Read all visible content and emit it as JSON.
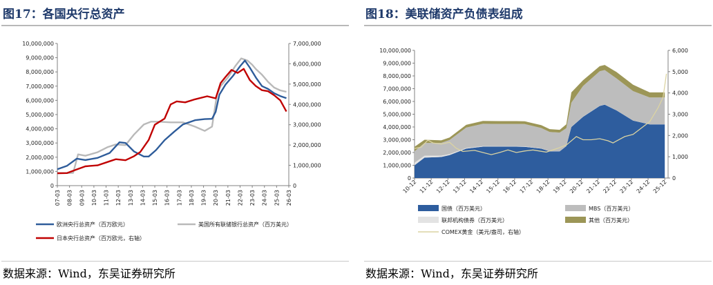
{
  "left_panel": {
    "title": "图17：各国央行总资产",
    "source": "数据来源：Wind，东吴证券研究所"
  },
  "right_panel": {
    "title": "图18：美联储资产负债表组成",
    "source": "数据来源：Wind，东吴证券研究所"
  },
  "colors": {
    "ecb": "#2e5c9a",
    "fed": "#b9b9b9",
    "boj": "#c00000",
    "treasury": "#2e5d9e",
    "mbs": "#bdbdbd",
    "agency": "#e3e3e3",
    "other": "#9c9657",
    "gold": "#dcd4a2",
    "title": "#1f3a6b"
  },
  "chart_data": [
    {
      "type": "line",
      "title": "",
      "x_categories": [
        "07-03",
        "08-03",
        "09-03",
        "10-03",
        "11-03",
        "12-03",
        "13-03",
        "14-03",
        "15-03",
        "16-03",
        "17-03",
        "18-03",
        "19-03",
        "20-03",
        "21-03",
        "22-03",
        "23-03",
        "24-03",
        "25-03",
        "26-03"
      ],
      "y_left_ticks": [
        "0",
        "1,000,000",
        "2,000,000",
        "3,000,000",
        "4,000,000",
        "5,000,000",
        "6,000,000",
        "7,000,000",
        "8,000,000",
        "9,000,000",
        "10,000,000"
      ],
      "y_left_range": [
        0,
        10000000
      ],
      "y_right_ticks": [
        "0",
        "1,000,000",
        "2,000,000",
        "3,000,000",
        "4,000,000",
        "5,000,000",
        "6,000,000",
        "7,000,000"
      ],
      "y_right_range": [
        0,
        7000000
      ],
      "series": [
        {
          "name": "欧洲央行总资产（百万欧元）",
          "axis": "left",
          "x": [
            2007.2,
            2008.0,
            2008.8,
            2009.5,
            2010.5,
            2011.5,
            2012.3,
            2012.8,
            2013.5,
            2014.3,
            2014.7,
            2015.3,
            2016.0,
            2016.8,
            2017.5,
            2018.5,
            2019.3,
            2019.9,
            2020.2,
            2020.5,
            2021.0,
            2021.6,
            2022.2,
            2022.6,
            2023.0,
            2023.5,
            2024.0,
            2024.5,
            2025.0,
            2025.5,
            2026.0
          ],
          "y": [
            1150000,
            1400000,
            1900000,
            1800000,
            1950000,
            2300000,
            3050000,
            3000000,
            2400000,
            2050000,
            2050000,
            2500000,
            3200000,
            3800000,
            4300000,
            4600000,
            4680000,
            4700000,
            5200000,
            6400000,
            7100000,
            7700000,
            8400000,
            8800000,
            8300000,
            7600000,
            7000000,
            6800000,
            6500000,
            6300000,
            6150000
          ]
        },
        {
          "name": "美国所有联储银行总资产（百万美元）",
          "axis": "left",
          "x": [
            2007.2,
            2008.5,
            2008.9,
            2009.5,
            2010.5,
            2011.3,
            2012.0,
            2012.8,
            2013.5,
            2014.3,
            2014.9,
            2015.5,
            2016.5,
            2017.5,
            2018.5,
            2019.3,
            2019.9,
            2020.3,
            2020.6,
            2021.2,
            2021.8,
            2022.3,
            2022.8,
            2023.2,
            2023.5,
            2024.0,
            2024.5,
            2025.0,
            2025.5,
            2026.0
          ],
          "y": [
            870000,
            900000,
            2200000,
            2100000,
            2350000,
            2700000,
            2900000,
            2850000,
            3600000,
            4300000,
            4500000,
            4500000,
            4450000,
            4450000,
            4150000,
            3850000,
            4150000,
            6400000,
            7000000,
            7600000,
            8400000,
            8950000,
            8800000,
            8500000,
            8200000,
            7800000,
            7300000,
            6900000,
            6700000,
            6600000
          ]
        },
        {
          "name": "日本央行总资产（百万欧元，右轴）",
          "axis": "right",
          "x": [
            2007.2,
            2008.0,
            2008.8,
            2009.5,
            2010.5,
            2011.5,
            2012.0,
            2012.8,
            2013.5,
            2014.0,
            2014.7,
            2015.2,
            2016.0,
            2016.5,
            2017.0,
            2017.7,
            2018.5,
            2019.5,
            2020.2,
            2020.6,
            2021.0,
            2021.5,
            2022.0,
            2022.5,
            2023.0,
            2023.5,
            2024.0,
            2024.5,
            2025.0,
            2025.5,
            2026.0
          ],
          "y": [
            610000,
            620000,
            800000,
            950000,
            1000000,
            1200000,
            1300000,
            1250000,
            1450000,
            1650000,
            2250000,
            3000000,
            3300000,
            4000000,
            4150000,
            4100000,
            4250000,
            4400000,
            4300000,
            5050000,
            5350000,
            5700000,
            5550000,
            5750000,
            5200000,
            4900000,
            4700000,
            4650000,
            4450000,
            4200000,
            3650000
          ]
        }
      ],
      "legend": [
        "欧洲央行总资产（百万欧元）",
        "美国所有联储银行总资产（百万美元）",
        "日本央行总资产（百万欧元，右轴）"
      ],
      "legend_position": "bottom"
    },
    {
      "type": "area",
      "title": "",
      "x_categories": [
        "10-12",
        "11-12",
        "12-12",
        "13-12",
        "14-12",
        "15-12",
        "16-12",
        "17-12",
        "18-12",
        "19-12",
        "20-12",
        "21-12",
        "22-12",
        "23-12",
        "24-12",
        "25-12"
      ],
      "y_left_ticks": [
        "0",
        "1,000,000",
        "2,000,000",
        "3,000,000",
        "4,000,000",
        "5,000,000",
        "6,000,000",
        "7,000,000",
        "8,000,000",
        "9,000,000",
        "10,000,000"
      ],
      "y_left_range": [
        0,
        10000000
      ],
      "y_right_ticks": [
        "0",
        "1,000",
        "2,000",
        "3,000",
        "4,000",
        "5,000",
        "6,000"
      ],
      "y_right_range": [
        0,
        6000
      ],
      "stacked_series": [
        {
          "name": "国债（百万美元）",
          "x": [
            2010.9,
            2011.5,
            2012.5,
            2013.0,
            2014.0,
            2015.0,
            2016.0,
            2017.0,
            2017.5,
            2018.5,
            2019.0,
            2019.6,
            2020.0,
            2020.3,
            2021.0,
            2022.0,
            2022.3,
            2023.0,
            2024.0,
            2025.0,
            2025.9
          ],
          "y": [
            1000000,
            1600000,
            1650000,
            1800000,
            2300000,
            2460000,
            2460000,
            2460000,
            2450000,
            2300000,
            2100000,
            2100000,
            2500000,
            4000000,
            4800000,
            5650000,
            5750000,
            5300000,
            4500000,
            4200000,
            4200000
          ]
        },
        {
          "name": "MBS（百万美元）",
          "x": [
            2010.9,
            2011.5,
            2012.5,
            2013.0,
            2014.0,
            2015.0,
            2016.0,
            2017.0,
            2017.5,
            2018.5,
            2019.0,
            2019.6,
            2020.0,
            2020.3,
            2021.0,
            2022.0,
            2022.3,
            2023.0,
            2024.0,
            2025.0,
            2025.9
          ],
          "y": [
            900000,
            1000000,
            1000000,
            1100000,
            1600000,
            1750000,
            1750000,
            1750000,
            1750000,
            1600000,
            1500000,
            1450000,
            1400000,
            1900000,
            2400000,
            2700000,
            2700000,
            2500000,
            2300000,
            2100000,
            2100000
          ]
        },
        {
          "name": "联邦机构债券（百万美元）",
          "x": [
            2010.9,
            2011.5,
            2012.5,
            2013.0,
            2014.0,
            2015.0,
            2016.0,
            2017.0,
            2017.5,
            2018.5,
            2019.0,
            2019.6,
            2020.0,
            2020.3,
            2021.0,
            2022.0,
            2022.3,
            2023.0,
            2024.0,
            2025.0,
            2025.9
          ],
          "y": [
            200000,
            150000,
            100000,
            80000,
            50000,
            40000,
            30000,
            30000,
            30000,
            20000,
            10000,
            10000,
            10000,
            10000,
            10000,
            10000,
            10000,
            10000,
            10000,
            10000,
            10000
          ]
        },
        {
          "name": "其他（百万美元）",
          "x": [
            2010.9,
            2011.5,
            2012.5,
            2013.0,
            2014.0,
            2015.0,
            2016.0,
            2017.0,
            2017.5,
            2018.5,
            2019.0,
            2019.6,
            2020.0,
            2020.3,
            2021.0,
            2022.0,
            2022.3,
            2023.0,
            2024.0,
            2025.0,
            2025.9
          ],
          "y": [
            350000,
            250000,
            200000,
            200000,
            220000,
            220000,
            220000,
            220000,
            220000,
            220000,
            220000,
            220000,
            300000,
            800000,
            450000,
            400000,
            400000,
            500000,
            500000,
            400000,
            400000
          ]
        }
      ],
      "line_series": {
        "name": "COMEX黄金（美元/盎司，右轴）",
        "axis": "right",
        "x": [
          2010.9,
          2011.3,
          2011.7,
          2012.0,
          2012.5,
          2013.0,
          2013.4,
          2013.8,
          2014.5,
          2015.5,
          2016.0,
          2016.5,
          2017.0,
          2017.5,
          2018.0,
          2018.8,
          2019.5,
          2020.0,
          2020.6,
          2021.0,
          2021.5,
          2022.0,
          2022.5,
          2022.8,
          2023.5,
          2024.0,
          2024.5,
          2025.0,
          2025.5,
          2025.8,
          2026.0
        ],
        "y": [
          1390,
          1450,
          1780,
          1650,
          1600,
          1680,
          1400,
          1250,
          1300,
          1100,
          1200,
          1320,
          1200,
          1270,
          1320,
          1220,
          1400,
          1550,
          1950,
          1800,
          1800,
          1850,
          1750,
          1650,
          1950,
          2050,
          2350,
          2650,
          3300,
          3800,
          4900
        ]
      },
      "legend": [
        "国债（百万美元）",
        "MBS（百万美元）",
        "联邦机构债券（百万美元）",
        "其他（百万美元）",
        "COMEX黄金（美元/盎司，右轴）"
      ],
      "legend_position": "bottom"
    }
  ]
}
